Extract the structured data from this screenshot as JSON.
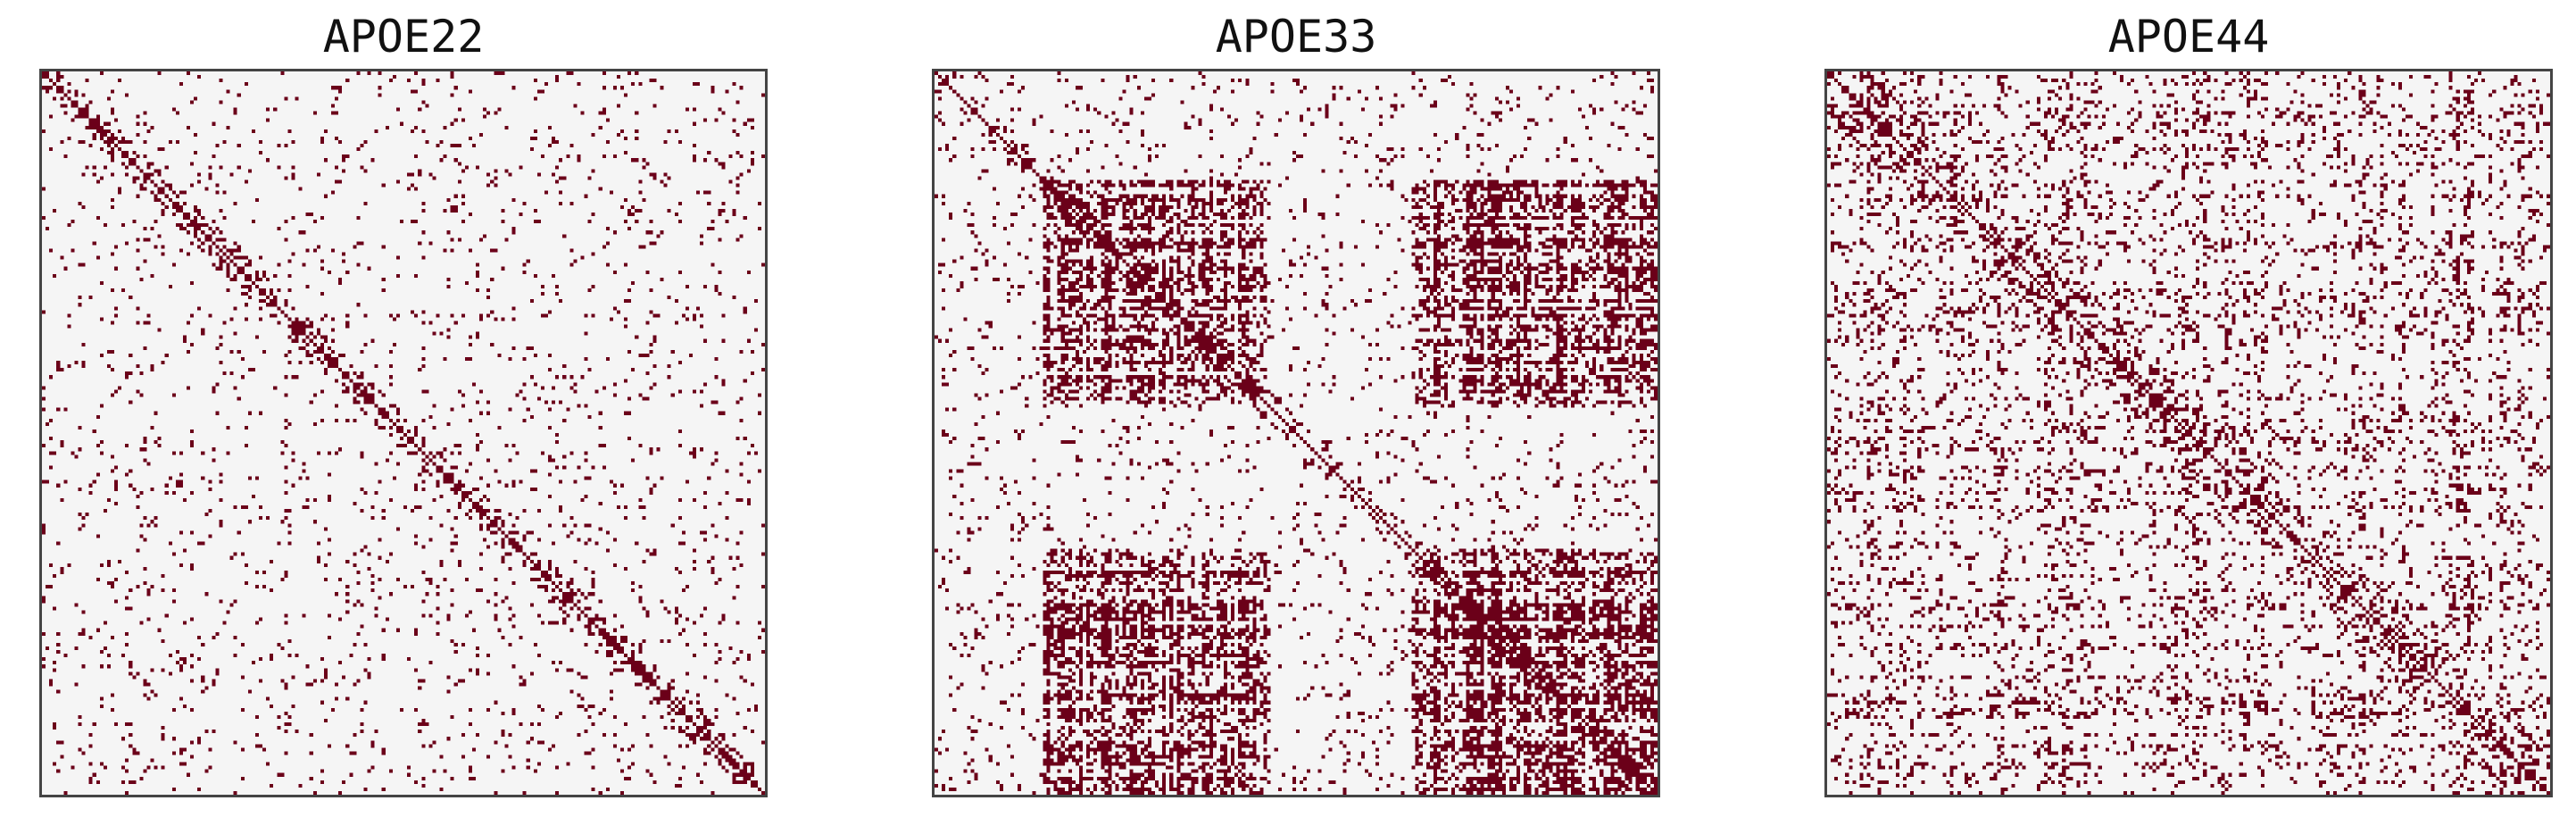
{
  "chart_data": [
    {
      "type": "heatmap",
      "title": "APOE22",
      "matrix_size": 200,
      "binary": true,
      "colors": {
        "on": "#6b0019",
        "off": "#f5f5f5"
      },
      "diagonal": "filled",
      "pattern": "sparse, roughly uniform off-diagonal entries with small clusters along the diagonal",
      "density": 0.085,
      "axes_visible": false
    },
    {
      "type": "heatmap",
      "title": "APOE33",
      "matrix_size": 200,
      "binary": true,
      "colors": {
        "on": "#6b0019",
        "off": "#f5f5f5"
      },
      "diagonal": "filled",
      "pattern": "two dense node groups (about 0.15-0.45 and 0.65-1.0 of the index range) strongly connected within and between each other; sparse elsewhere",
      "density": 0.26,
      "axes_visible": false
    },
    {
      "type": "heatmap",
      "title": "APOE44",
      "matrix_size": 200,
      "binary": true,
      "colors": {
        "on": "#6b0019",
        "off": "#f5f5f5"
      },
      "diagonal": "filled",
      "pattern": "moderately dense with striped row/column structure and denser blocks along the diagonal",
      "density": 0.2,
      "axes_visible": false
    }
  ]
}
